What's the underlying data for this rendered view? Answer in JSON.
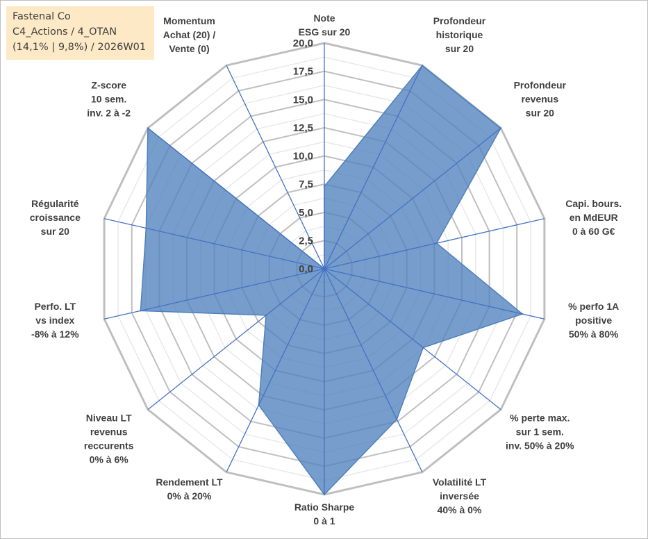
{
  "info": {
    "company": "Fastenal Co",
    "portfolio": "C4_Actions / 4_OTAN",
    "stats": "(14,1% | 9,8%) / 2026W01"
  },
  "chart_data": {
    "type": "radar",
    "title": "Fastenal Co",
    "rmin": 0,
    "rmax": 20,
    "tick_values": [
      0,
      2.5,
      5,
      7.5,
      10,
      12.5,
      15,
      17.5,
      20
    ],
    "tick_labels": [
      "0,0",
      "2,5",
      "5,0",
      "7,5",
      "10,0",
      "12,5",
      "15,0",
      "17,5",
      "20,0"
    ],
    "axes": [
      {
        "label": [
          "Note",
          "ESG sur 20"
        ]
      },
      {
        "label": [
          "Profondeur",
          "historique",
          "sur 20"
        ]
      },
      {
        "label": [
          "Profondeur",
          "revenus",
          "sur 20"
        ]
      },
      {
        "label": [
          "Capi. bours.",
          "en MdEUR",
          "0 à 60 G€"
        ]
      },
      {
        "label": [
          "% perfo 1A",
          "positive",
          "50% à 80%"
        ]
      },
      {
        "label": [
          "% perte max.",
          "sur 1 sem.",
          "inv. 50% à 20%"
        ]
      },
      {
        "label": [
          "Volatilité LT",
          "inversée",
          "40% à 0%"
        ]
      },
      {
        "label": [
          "Ratio Sharpe",
          "0 à 1"
        ]
      },
      {
        "label": [
          "Rendement LT",
          "0% à 20%"
        ]
      },
      {
        "label": [
          "Niveau LT",
          "revenus",
          "reccurents",
          "0% à 6%"
        ]
      },
      {
        "label": [
          "Perfo. LT",
          "vs index",
          "-8% à 12%"
        ]
      },
      {
        "label": [
          "Régularité",
          "croissance",
          "sur 20"
        ]
      },
      {
        "label": [
          "Z-score",
          "10 sem.",
          "inv. 2 à -2"
        ]
      },
      {
        "label": [
          "Momentum",
          "Achat (20) /",
          "Vente (0)"
        ]
      }
    ],
    "series": [
      {
        "name": "Fastenal Co",
        "values": [
          7.3,
          20,
          20,
          10.2,
          18,
          11.2,
          14.8,
          20,
          13.4,
          6.6,
          16.7,
          16.2,
          20,
          0
        ],
        "color": "#4f81bd"
      }
    ],
    "colors": {
      "fill": "#4f81bd",
      "axis_line": "#4472c4",
      "grid_major": "#bfbfbf",
      "grid_minor": "#e7e7e7",
      "text": "#404040",
      "info_bg": "#fde9c6"
    }
  }
}
